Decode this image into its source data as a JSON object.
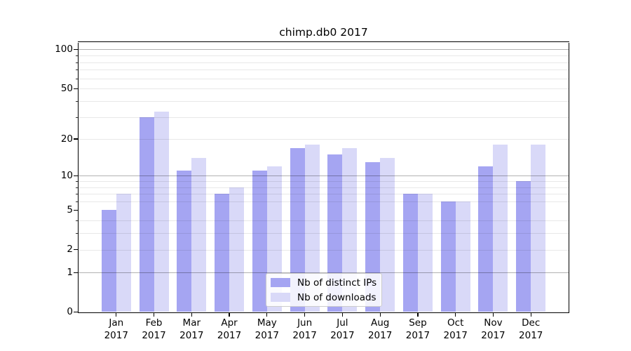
{
  "title": "chimp.db0 2017",
  "chart_data": {
    "type": "bar",
    "title": "chimp.db0 2017",
    "xlabel": "",
    "ylabel": "",
    "categories": [
      "Jan",
      "Feb",
      "Mar",
      "Apr",
      "May",
      "Jun",
      "Jul",
      "Aug",
      "Sep",
      "Oct",
      "Nov",
      "Dec"
    ],
    "year": "2017",
    "series": [
      {
        "name": "Nb of distinct IPs",
        "color": "#a5a5f2",
        "values": [
          5,
          30,
          11,
          7,
          11,
          17,
          15,
          13,
          7,
          6,
          12,
          9
        ]
      },
      {
        "name": "Nb of downloads",
        "color": "#d9d9f8",
        "values": [
          7,
          33,
          14,
          8,
          12,
          18,
          17,
          14,
          7,
          6,
          18,
          18
        ]
      }
    ],
    "yscale": "log1p",
    "ylim": [
      0,
      114
    ],
    "yticks": [
      0,
      1,
      2,
      5,
      10,
      20,
      50,
      100
    ],
    "major_gridlines": [
      1,
      10,
      100
    ],
    "minor_gridlines": [
      2,
      3,
      4,
      6,
      7,
      8,
      9,
      20,
      30,
      40,
      50,
      60,
      70,
      80,
      90
    ],
    "minor_tick_values": [
      3,
      4,
      6,
      7,
      8,
      9,
      30,
      40,
      60,
      70,
      80,
      90
    ],
    "grid": true,
    "legend_position": "lower center"
  },
  "colors": {
    "background": "#ffffff",
    "bar_distinct_ips": "#a5a5f2",
    "bar_downloads": "#d9d9f8",
    "major_grid": "rgba(0,0,0,0.30)",
    "minor_grid": "rgba(0,0,0,0.09)",
    "spine": "#000000",
    "text": "#000000",
    "legend_border": "#cccccc"
  }
}
